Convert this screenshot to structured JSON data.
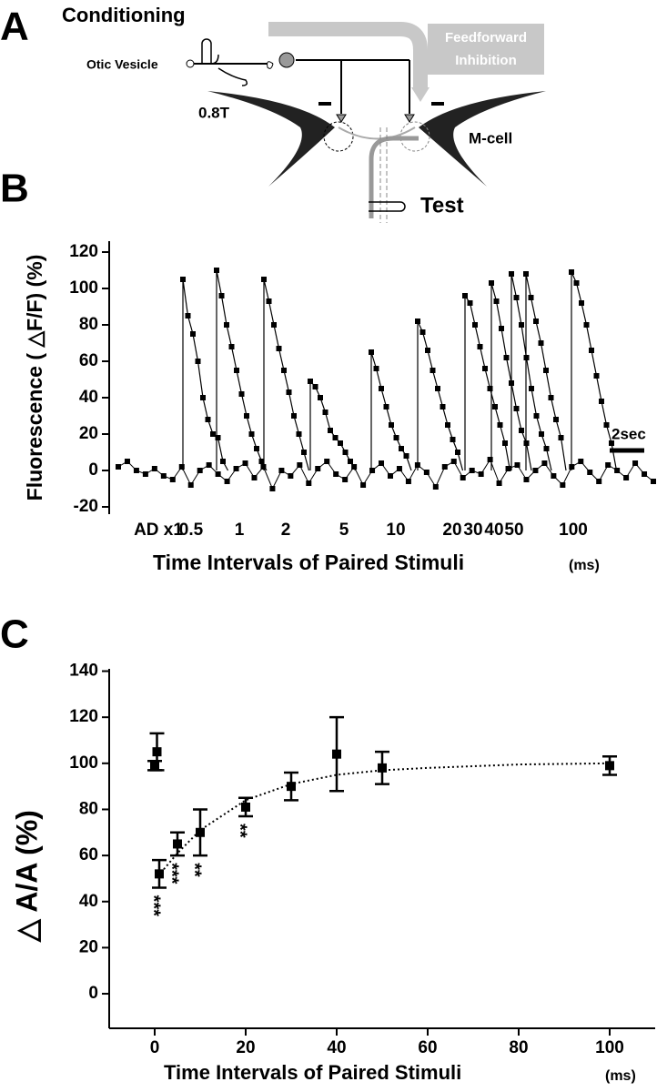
{
  "panels": [
    "A",
    "B",
    "C"
  ],
  "diagram": {
    "conditioning": "Conditioning",
    "otic_vesicle": "Otic Vesicle",
    "stimulus": "0.8T",
    "inhibition": [
      "Feedforward",
      "Inhibition"
    ],
    "m_cell": "M-cell",
    "test": "Test"
  },
  "chart_data": [
    {
      "type": "line",
      "y_label": "Fluorescence ( △F/F) (%)",
      "x_label": "Time Intervals of Paired Stimuli",
      "x_unit": "(ms)",
      "categories": [
        "AD x1",
        "0.5",
        "1",
        "2",
        "5",
        "10",
        "20",
        "30",
        "40",
        "50",
        "100"
      ],
      "traces": [
        [
          105,
          85,
          75,
          60,
          40,
          28,
          20,
          18,
          5
        ],
        [
          110,
          96,
          80,
          68,
          55,
          42,
          30,
          20,
          12,
          5
        ],
        [
          105,
          93,
          80,
          67,
          55,
          43,
          30,
          20,
          10
        ],
        [
          49,
          46,
          40,
          32,
          22,
          18,
          15,
          10,
          5
        ],
        [
          65,
          56,
          45,
          35,
          25,
          18,
          12,
          8
        ],
        [
          82,
          76,
          66,
          55,
          45,
          35,
          25,
          17,
          10
        ],
        [
          96,
          92,
          80,
          68,
          56,
          45,
          35,
          25,
          15
        ],
        [
          103,
          93,
          78,
          62,
          48,
          34,
          22,
          15
        ],
        [
          108,
          95,
          80,
          62,
          45,
          30,
          20,
          12
        ],
        [
          108,
          95,
          82,
          70,
          55,
          40,
          28,
          18
        ],
        [
          109,
          103,
          92,
          80,
          66,
          52,
          38,
          25,
          15
        ]
      ],
      "baseline": [
        2,
        5,
        0,
        -2,
        1,
        -3,
        -5,
        2,
        -8,
        0,
        3,
        -2,
        -6,
        1,
        4,
        -4,
        2,
        -10,
        0,
        -3,
        3,
        -7,
        1,
        5,
        -2,
        -5,
        2,
        -8,
        0,
        4,
        -3,
        1,
        -6,
        3,
        -1,
        -9,
        2,
        5,
        -4,
        0,
        -2,
        6,
        -7,
        1,
        3,
        -5,
        0,
        4,
        -3,
        -8,
        2,
        5,
        -1,
        -6,
        3,
        0,
        -4,
        4,
        -2,
        -6
      ],
      "ylim": [
        -24,
        126
      ],
      "yticks": [
        -20,
        0,
        20,
        40,
        60,
        80,
        100,
        120
      ],
      "scale_bar": "2sec"
    },
    {
      "type": "scatter",
      "y_label": "△ A/A (%)",
      "x_label": "Time Intervals of Paired Stimuli",
      "x_unit": "(ms)",
      "x": [
        0,
        0.5,
        1,
        5,
        10,
        20,
        30,
        40,
        50,
        100
      ],
      "values": [
        99,
        105,
        52,
        65,
        70,
        81,
        90,
        104,
        98,
        99
      ],
      "errors": [
        2,
        8,
        6,
        5,
        10,
        4,
        6,
        16,
        7,
        4
      ],
      "annotations": [
        {
          "x": 1,
          "text": "***"
        },
        {
          "x": 5,
          "text": "***"
        },
        {
          "x": 10,
          "text": "**"
        },
        {
          "x": 20,
          "text": "**"
        }
      ],
      "fit": {
        "x": [
          2,
          5,
          10,
          20,
          30,
          40,
          50,
          60,
          80,
          100
        ],
        "values": [
          54,
          61,
          71,
          84,
          91,
          95,
          97,
          98,
          99.5,
          100
        ]
      },
      "xlim": [
        -10,
        110
      ],
      "xticks": [
        0,
        20,
        40,
        60,
        80,
        100
      ],
      "ylim": [
        -15,
        141
      ],
      "yticks": [
        0,
        20,
        40,
        60,
        80,
        100,
        120,
        140
      ]
    }
  ]
}
